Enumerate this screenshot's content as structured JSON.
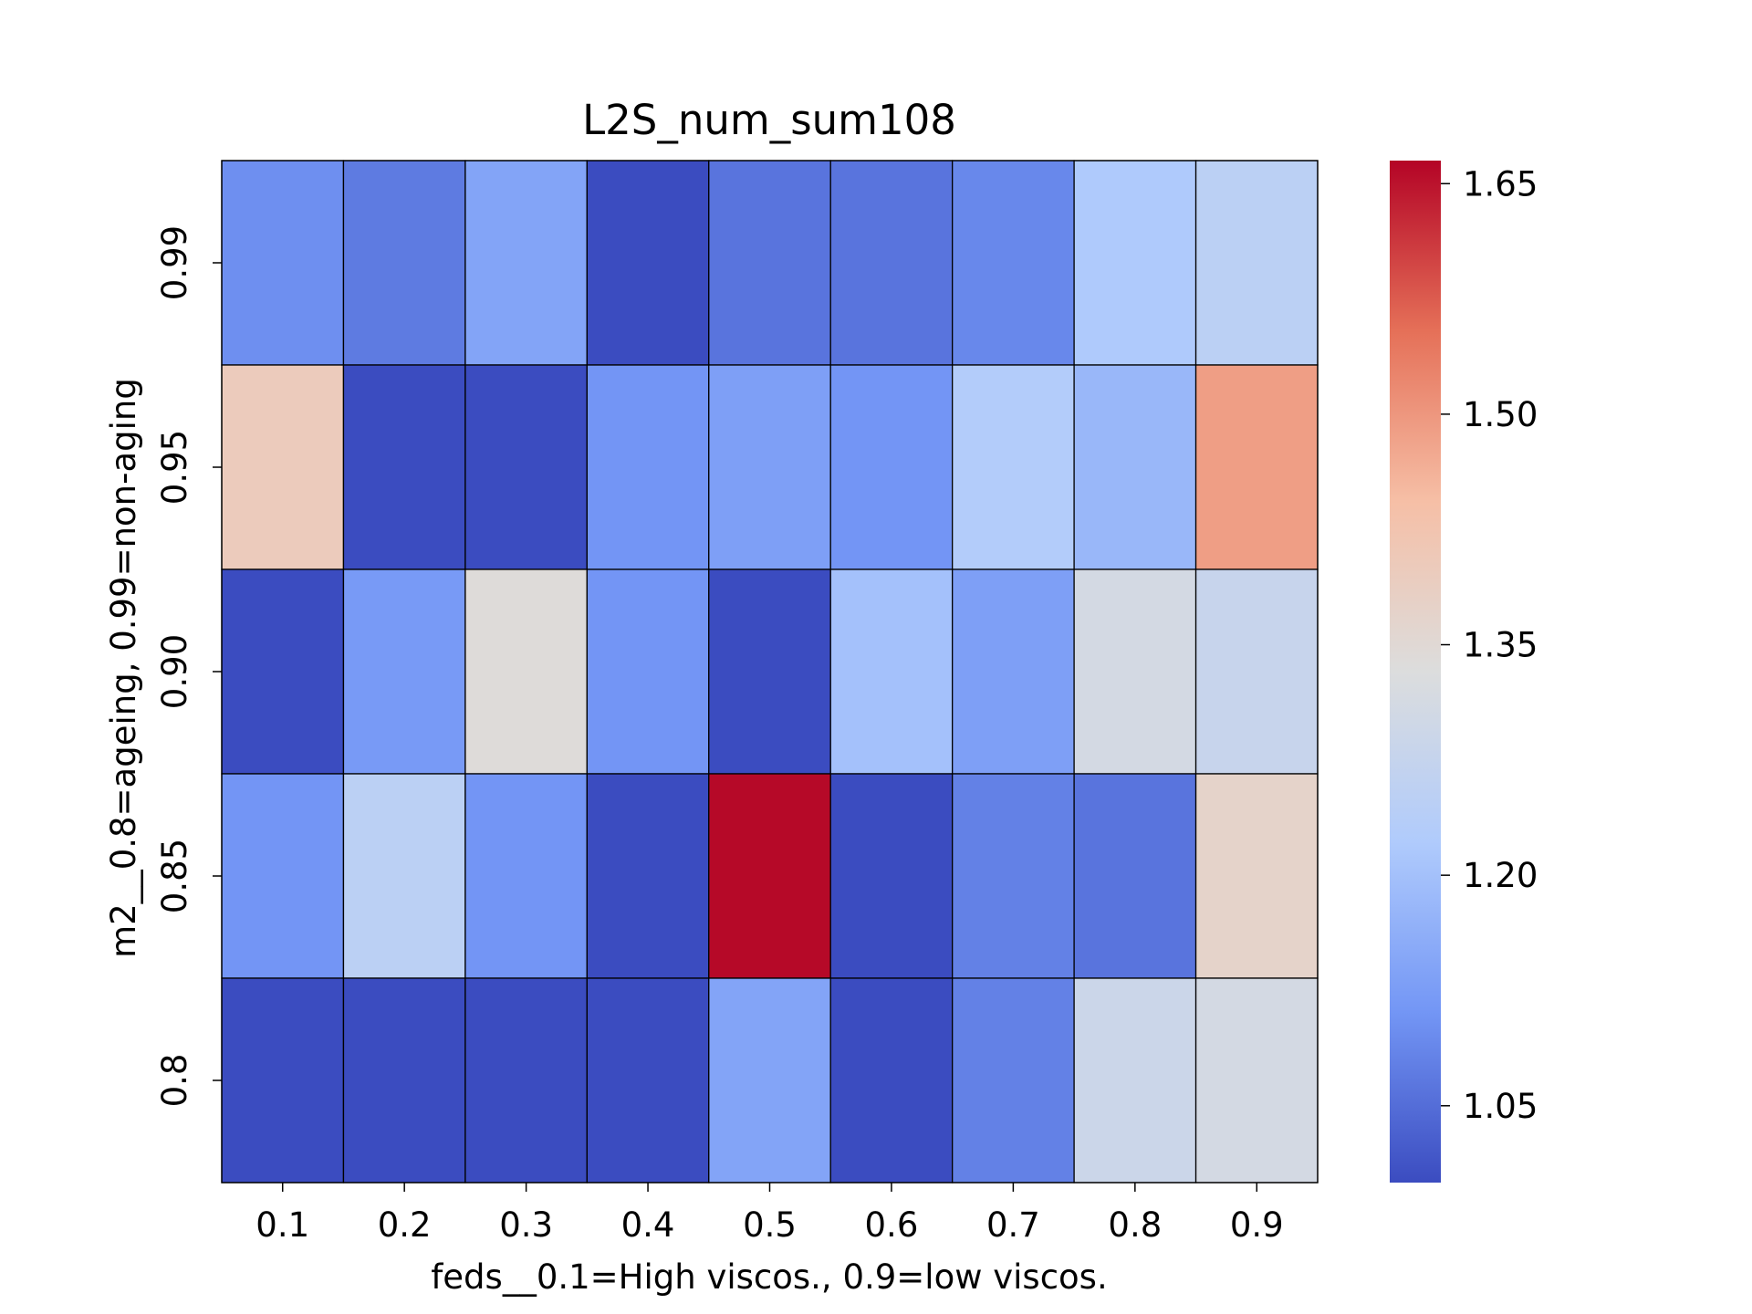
{
  "chart_data": {
    "type": "heatmap",
    "title": "L2S_num_sum108",
    "xlabel": "feds__0.1=High viscos., 0.9=low viscos.",
    "ylabel": "m2__0.8=ageing, 0.99=non-aging",
    "x_categories": [
      "0.1",
      "0.2",
      "0.3",
      "0.4",
      "0.5",
      "0.6",
      "0.7",
      "0.8",
      "0.9"
    ],
    "y_categories": [
      "0.99",
      "0.95",
      "0.90",
      "0.85",
      "0.8"
    ],
    "values": [
      [
        1.1,
        1.07,
        1.14,
        1.0,
        1.06,
        1.06,
        1.09,
        1.22,
        1.25
      ],
      [
        1.4,
        1.0,
        1.0,
        1.11,
        1.13,
        1.11,
        1.23,
        1.18,
        1.49
      ],
      [
        1.0,
        1.12,
        1.34,
        1.11,
        1.0,
        1.2,
        1.13,
        1.31,
        1.28
      ],
      [
        1.11,
        1.25,
        1.11,
        1.0,
        1.66,
        1.0,
        1.08,
        1.06,
        1.37
      ],
      [
        1.0,
        1.0,
        1.0,
        1.0,
        1.14,
        1.0,
        1.08,
        1.29,
        1.31
      ]
    ],
    "colormap": "coolwarm",
    "vmin": 1.0,
    "vmax": 1.665,
    "colorbar_ticks": [
      "1.05",
      "1.20",
      "1.35",
      "1.50",
      "1.65"
    ],
    "colors": [
      "#3b4cc0",
      "#7396f5",
      "#b0cbfc",
      "#dcdddd",
      "#f6bfa6",
      "#e57058",
      "#b40426"
    ],
    "cell_border": "#000000"
  }
}
